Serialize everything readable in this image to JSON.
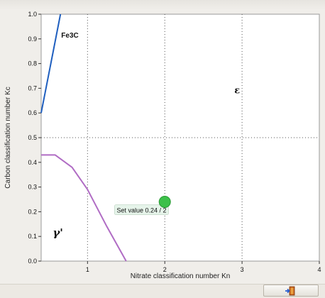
{
  "colors": {
    "plot_background": "#ffffff",
    "window_background": "#f0eeea",
    "fe3c_line": "#1f5fbf",
    "gamma_line": "#b06cc4",
    "setpoint_fill": "#3cc04a",
    "callout_fill": "#e6f4ea"
  },
  "toolbar": {
    "exit_icon": "exit-door-icon"
  },
  "chart_data": {
    "type": "line",
    "xlabel": "Nitrate classification number Kn",
    "ylabel": "Carbon classification number Kc",
    "xlim": [
      0.4,
      4.0
    ],
    "ylim": [
      0.0,
      1.0
    ],
    "x_ticks": [
      1,
      2,
      3,
      4
    ],
    "x_tick_labels": [
      "1",
      "2",
      "3",
      "4"
    ],
    "y_ticks": [
      0.0,
      0.1,
      0.2,
      0.3,
      0.4,
      0.5,
      0.6,
      0.7,
      0.8,
      0.9,
      1.0
    ],
    "y_tick_labels": [
      "0.0",
      "0.1",
      "0.2",
      "0.3",
      "0.4",
      "0.5",
      "0.6",
      "0.7",
      "0.8",
      "0.9",
      "1.0"
    ],
    "grid_x": [
      1,
      2,
      3
    ],
    "grid_y": [
      0.5
    ],
    "series": [
      {
        "name": "Fe3C",
        "x": [
          0.4,
          0.65
        ],
        "y": [
          0.6,
          1.0
        ]
      },
      {
        "name": "γ'",
        "x": [
          0.4,
          0.58,
          0.8,
          1.0,
          1.25,
          1.5
        ],
        "y": [
          0.43,
          0.43,
          0.38,
          0.29,
          0.14,
          0.0
        ]
      }
    ],
    "region_labels": [
      {
        "text": "ε",
        "x": 2.9,
        "y": 0.68
      },
      {
        "text": "γ'",
        "x": 0.55,
        "y": 0.1
      }
    ],
    "series_labels": [
      {
        "text": "Fe3C",
        "x": 0.66,
        "y": 0.905
      }
    ],
    "setpoint": {
      "x": 2.0,
      "y": 0.24,
      "label": "Set value 0.24 / 2",
      "label_x": 1.35,
      "label_y": 0.205
    }
  }
}
